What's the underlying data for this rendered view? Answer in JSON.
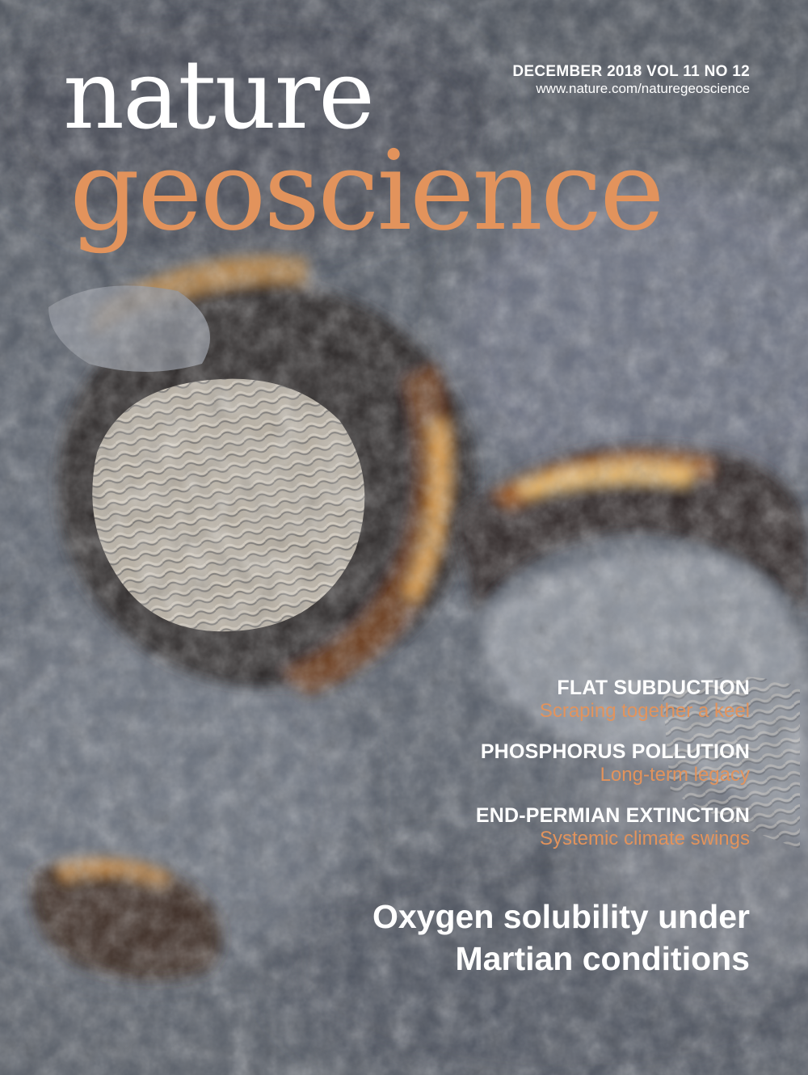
{
  "cover": {
    "issue_line": "DECEMBER 2018  VOL 11  NO 12",
    "url": "www.nature.com/naturegeoscience",
    "masthead": {
      "word1": "nature",
      "word2": "geoscience"
    },
    "teasers": [
      {
        "title": "FLAT SUBDUCTION",
        "subtitle": "Scraping together a keel"
      },
      {
        "title": "PHOSPHORUS POLLUTION",
        "subtitle": "Long-term legacy"
      },
      {
        "title": "END-PERMIAN EXTINCTION",
        "subtitle": "Systemic climate swings"
      }
    ],
    "headline": {
      "line1": "Oxygen solubility under",
      "line2": "Martian conditions"
    }
  },
  "colors": {
    "accent_orange": "#e2935c",
    "text_white": "#ffffff",
    "terrain_gray": "#5e6470"
  }
}
